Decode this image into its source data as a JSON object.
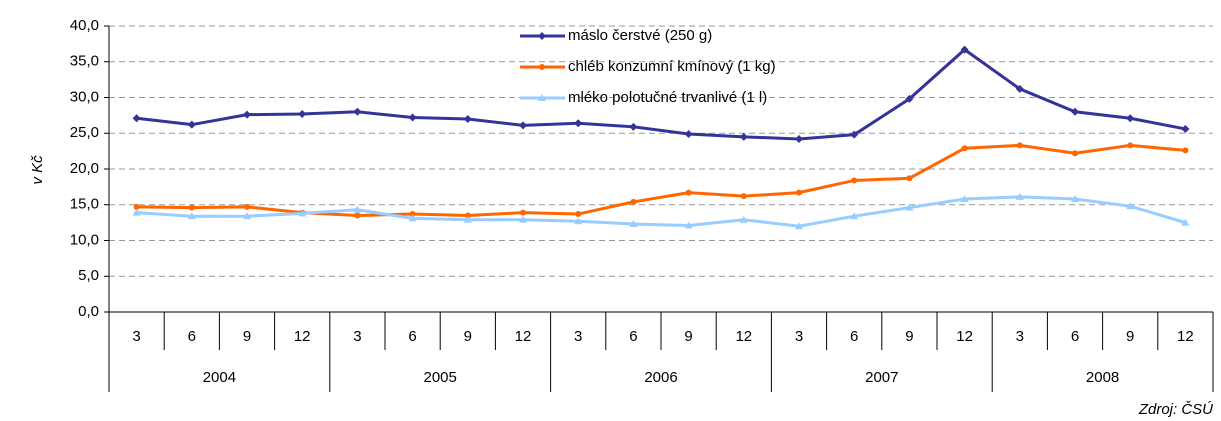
{
  "chart_data": {
    "type": "line",
    "y_label": "v Kč",
    "source": "Zdroj: ČSÚ",
    "categories": [
      "3",
      "6",
      "9",
      "12",
      "3",
      "6",
      "9",
      "12",
      "3",
      "6",
      "9",
      "12",
      "3",
      "6",
      "9",
      "12",
      "3",
      "6",
      "9",
      "12"
    ],
    "years": [
      "2004",
      "2005",
      "2006",
      "2007",
      "2008"
    ],
    "series": [
      {
        "name": "máslo čerstvé (250 g)",
        "color": "#333399",
        "marker": "diamond",
        "values": [
          27.1,
          26.2,
          27.6,
          27.7,
          28.0,
          27.2,
          27.0,
          26.1,
          26.4,
          25.9,
          24.9,
          24.5,
          24.2,
          24.8,
          29.8,
          36.7,
          31.2,
          28.0,
          27.1,
          25.6
        ]
      },
      {
        "name": "chléb konzumní kmínový (1 kg)",
        "color": "#ff6600",
        "marker": "circle",
        "values": [
          14.7,
          14.6,
          14.7,
          13.9,
          13.5,
          13.7,
          13.5,
          13.9,
          13.7,
          15.4,
          16.7,
          16.2,
          16.7,
          18.4,
          18.7,
          22.9,
          23.3,
          22.2,
          23.3,
          22.6
        ]
      },
      {
        "name": "mléko polotučné trvanlivé (1 l)",
        "color": "#99ccff",
        "marker": "triangle",
        "values": [
          13.9,
          13.4,
          13.4,
          13.8,
          14.3,
          13.1,
          12.9,
          12.9,
          12.7,
          12.3,
          12.1,
          12.9,
          12.0,
          13.4,
          14.6,
          15.8,
          16.1,
          15.8,
          14.8,
          12.5
        ]
      }
    ],
    "ylim": [
      0,
      40
    ],
    "yticks": [
      {
        "value": 0,
        "label": "0,0"
      },
      {
        "value": 5,
        "label": "5,0"
      },
      {
        "value": 10,
        "label": "10,0"
      },
      {
        "value": 15,
        "label": "15,0"
      },
      {
        "value": 20,
        "label": "20,0"
      },
      {
        "value": 25,
        "label": "25,0"
      },
      {
        "value": 30,
        "label": "30,0"
      },
      {
        "value": 35,
        "label": "35,0"
      },
      {
        "value": 40,
        "label": "40,0"
      }
    ],
    "grid": true
  }
}
